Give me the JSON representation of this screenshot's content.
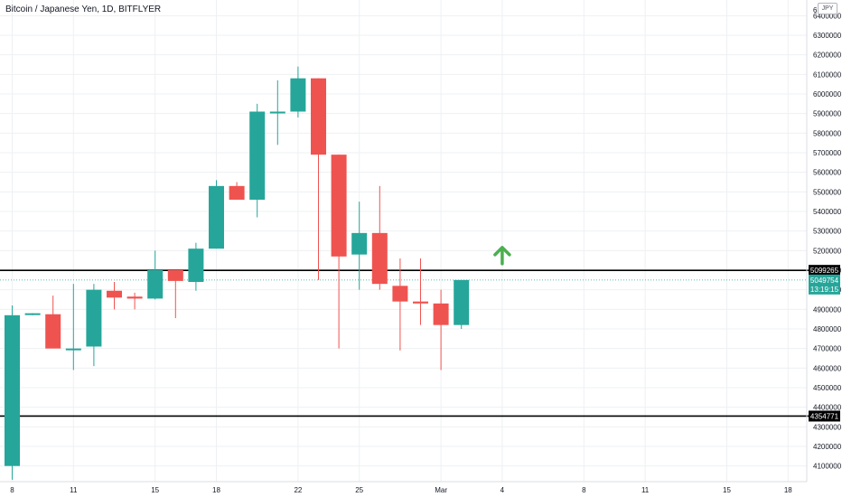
{
  "title": "Bitcoin / Japanese Yen, 1D, BITFLYER",
  "currency": "JPY",
  "colors": {
    "up": "#26a69a",
    "down": "#ef5350",
    "grid": "#eef0f3",
    "line": "#000000",
    "arrow": "#4caf50"
  },
  "arrow_icon": "up-arrow-icon",
  "chart_data": {
    "type": "candlestick",
    "title": "Bitcoin / Japanese Yen, 1D, BITFLYER",
    "ylim": [
      4020000,
      6480000
    ],
    "xlim": [
      0,
      33.6
    ],
    "y_ticks": [
      4100000,
      4200000,
      4300000,
      4400000,
      4500000,
      4600000,
      4700000,
      4800000,
      4900000,
      5000000,
      5100000,
      5200000,
      5300000,
      5400000,
      5500000,
      5600000,
      5700000,
      5800000,
      5900000,
      6000000,
      6100000,
      6200000,
      6300000,
      6400000
    ],
    "top_tick_label": "6",
    "x_ticks": [
      {
        "label": "8",
        "day": 0
      },
      {
        "label": "11",
        "day": 3
      },
      {
        "label": "15",
        "day": 7
      },
      {
        "label": "18",
        "day": 10
      },
      {
        "label": "22",
        "day": 14
      },
      {
        "label": "25",
        "day": 17
      },
      {
        "label": "Mar",
        "day": 21
      },
      {
        "label": "4",
        "day": 24
      },
      {
        "label": "8",
        "day": 28
      },
      {
        "label": "11",
        "day": 31
      },
      {
        "label": "15",
        "day": 35
      },
      {
        "label": "18",
        "day": 38
      }
    ],
    "candles": [
      {
        "day": 0,
        "o": 4100000,
        "h": 4920000,
        "l": 4030000,
        "c": 4870000
      },
      {
        "day": 1,
        "o": 4875000,
        "h": 4880000,
        "l": 4870000,
        "c": 4880000
      },
      {
        "day": 2,
        "o": 4875000,
        "h": 4970000,
        "l": 4710000,
        "c": 4700000
      },
      {
        "day": 3,
        "o": 4700000,
        "h": 5030000,
        "l": 4590000,
        "c": 4700000
      },
      {
        "day": 4,
        "o": 4710000,
        "h": 5030000,
        "l": 4610000,
        "c": 5000000
      },
      {
        "day": 5,
        "o": 4995000,
        "h": 5040000,
        "l": 4900000,
        "c": 4960000
      },
      {
        "day": 6,
        "o": 4965000,
        "h": 4985000,
        "l": 4900000,
        "c": 4955000
      },
      {
        "day": 7,
        "o": 4955000,
        "h": 5200000,
        "l": 4950000,
        "c": 5100000
      },
      {
        "day": 8,
        "o": 5100000,
        "h": 5100000,
        "l": 4855000,
        "c": 5045000
      },
      {
        "day": 9,
        "o": 5040000,
        "h": 5240000,
        "l": 4995000,
        "c": 5210000
      },
      {
        "day": 10,
        "o": 5210000,
        "h": 5560000,
        "l": 5210000,
        "c": 5530000
      },
      {
        "day": 11,
        "o": 5530000,
        "h": 5550000,
        "l": 5470000,
        "c": 5460000
      },
      {
        "day": 12,
        "o": 5460000,
        "h": 5950000,
        "l": 5370000,
        "c": 5910000
      },
      {
        "day": 13,
        "o": 5910000,
        "h": 6070000,
        "l": 5740000,
        "c": 5910000
      },
      {
        "day": 14,
        "o": 5910000,
        "h": 6140000,
        "l": 5880000,
        "c": 6080000
      },
      {
        "day": 15,
        "o": 6080000,
        "h": 6080000,
        "l": 5050000,
        "c": 5690000
      },
      {
        "day": 16,
        "o": 5690000,
        "h": 5690000,
        "l": 4700000,
        "c": 5170000
      },
      {
        "day": 17,
        "o": 5180000,
        "h": 5450000,
        "l": 5000000,
        "c": 5290000
      },
      {
        "day": 18,
        "o": 5290000,
        "h": 5530000,
        "l": 5000000,
        "c": 5030000
      },
      {
        "day": 19,
        "o": 5020000,
        "h": 5160000,
        "l": 4690000,
        "c": 4940000
      },
      {
        "day": 20,
        "o": 4940000,
        "h": 5160000,
        "l": 4820000,
        "c": 4930000
      },
      {
        "day": 21,
        "o": 4930000,
        "h": 5000000,
        "l": 4590000,
        "c": 4820000
      },
      {
        "day": 22,
        "o": 4820000,
        "h": 5050000,
        "l": 4800000,
        "c": 5050000
      }
    ],
    "horizontal_lines": [
      {
        "label": "5099265",
        "value": 5099265
      },
      {
        "label": "4354771",
        "value": 4354771
      }
    ],
    "price_label": {
      "value": 5049754,
      "label": "5049754",
      "countdown": "13:19:15"
    },
    "arrow": {
      "day": 24,
      "value": 5170000,
      "direction": "up"
    }
  }
}
